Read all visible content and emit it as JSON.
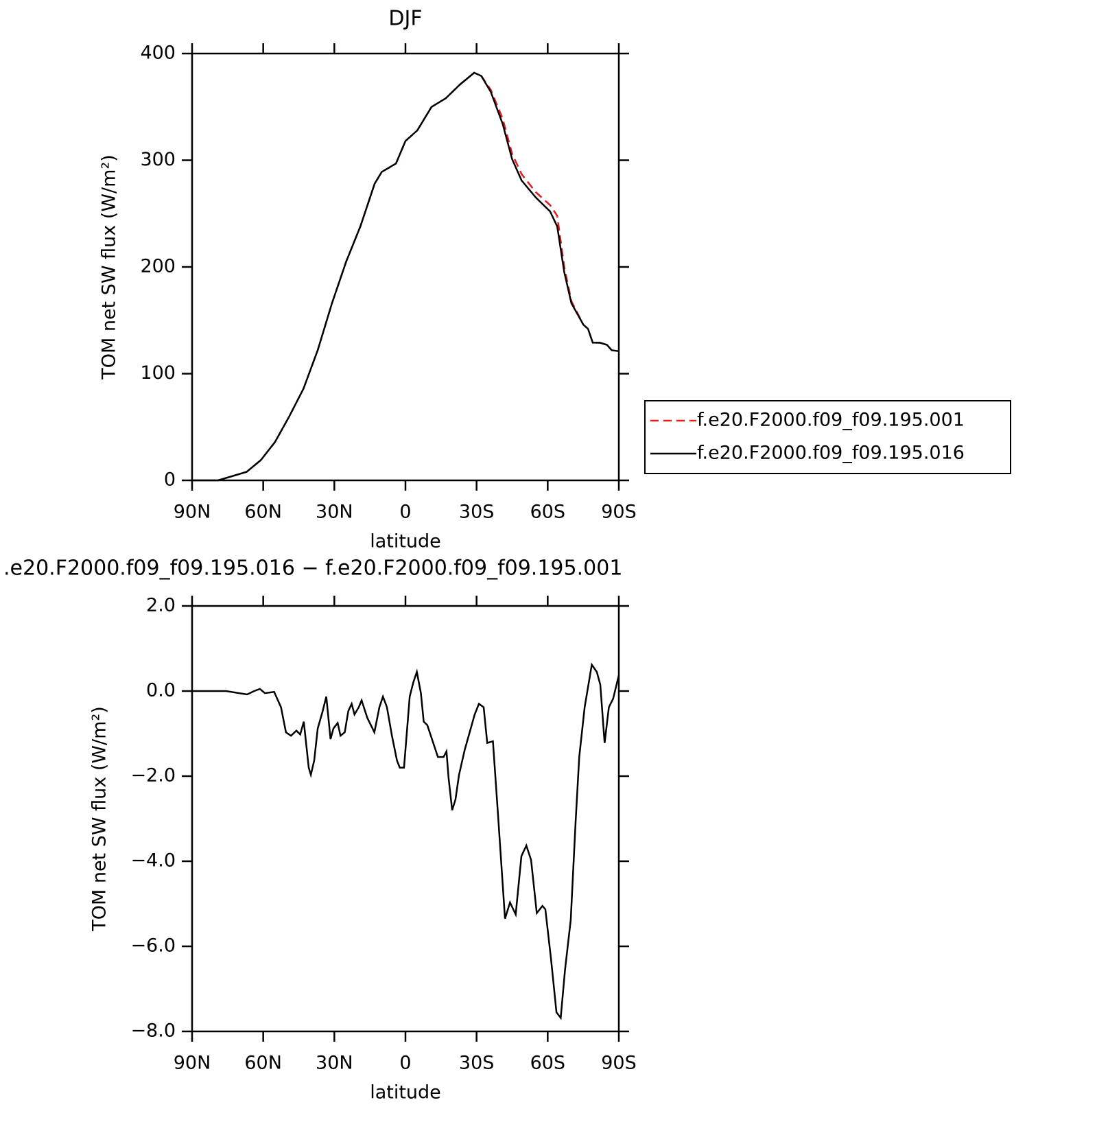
{
  "chart_data": [
    {
      "type": "line",
      "title": "DJF",
      "xlabel": "latitude",
      "ylabel": "TOM net SW flux (W/m²)",
      "x": [
        90,
        79,
        67,
        61,
        55,
        49,
        43,
        37,
        31,
        25,
        19,
        13,
        10,
        7,
        4,
        0,
        -5,
        -11,
        -17,
        -23,
        -29,
        -32,
        -36,
        -41,
        -45,
        -49,
        -55,
        -61,
        -64,
        -67,
        -70,
        -75,
        -77,
        -79,
        -82,
        -85,
        -87,
        -90
      ],
      "series": [
        {
          "name": "f.e20.F2000.f09_f09.195.001",
          "color": "#e41a1c",
          "line_style": "dashed",
          "values": [
            0,
            0,
            8,
            19,
            36,
            60,
            86,
            122,
            166,
            205,
            238,
            278,
            289,
            293,
            297,
            318,
            328,
            350,
            358,
            371,
            382,
            379,
            366,
            339,
            306,
            287,
            270,
            258,
            248,
            200,
            168,
            146,
            142,
            129,
            129,
            127,
            122,
            121
          ]
        },
        {
          "name": "f.e20.F2000.f09_f09.195.016",
          "color": "#000000",
          "line_style": "solid",
          "values": [
            0,
            0,
            8,
            19,
            36,
            60,
            86,
            122,
            166,
            205,
            238,
            278,
            289,
            293,
            297,
            318,
            328,
            350,
            358,
            371,
            382,
            379,
            364,
            334,
            301,
            281,
            265,
            252,
            238,
            195,
            166,
            146,
            142,
            129,
            129,
            127,
            122,
            121
          ]
        }
      ],
      "xlim": [
        90,
        -90
      ],
      "xticks": [
        {
          "value": 90,
          "label": "90N"
        },
        {
          "value": 60,
          "label": "60N"
        },
        {
          "value": 30,
          "label": "30N"
        },
        0,
        {
          "value": -30,
          "label": "30S"
        },
        {
          "value": -60,
          "label": "60S"
        },
        {
          "value": -90,
          "label": "90S"
        }
      ],
      "ylim": [
        0,
        400
      ],
      "yticks": [
        0,
        100,
        200,
        300,
        400
      ],
      "legend": "right"
    },
    {
      "type": "line",
      "title": ".e20.F2000.f09_f09.195.016 − f.e20.F2000.f09_f09.195.001",
      "xlabel": "latitude",
      "ylabel": "TOM net SW flux (W/m²)",
      "x": [
        90,
        75.7,
        66.8,
        63.8,
        61.4,
        59.3,
        55.4,
        52.5,
        50.4,
        48.3,
        46,
        44.4,
        42.9,
        40.8,
        39.9,
        38.5,
        37,
        34.9,
        33.4,
        31.6,
        30.4,
        28.6,
        27.4,
        25.6,
        24.1,
        22.7,
        21.5,
        19.7,
        18.5,
        16.1,
        13.1,
        11,
        9.5,
        7.8,
        5.7,
        3.6,
        2.4,
        0.6,
        -1.8,
        -3.3,
        -4.8,
        -6.5,
        -7.7,
        -9.2,
        -10.7,
        -13.7,
        -16.1,
        -17.3,
        -18.2,
        -19.7,
        -21.1,
        -22.6,
        -25,
        -27.1,
        -29.2,
        -31,
        -33,
        -34.5,
        -36.9,
        -39,
        -42,
        -44.1,
        -46.5,
        -48.9,
        -51,
        -53,
        -55.4,
        -57.8,
        -59,
        -61.4,
        -63.7,
        -65.5,
        -67.3,
        -69.7,
        -71.8,
        -73.3,
        -75.6,
        -78.6,
        -80.7,
        -82.2,
        -84,
        -85.8,
        -87.6,
        -90
      ],
      "values": [
        0,
        0,
        -0.08,
        0,
        0.05,
        -0.05,
        -0.02,
        -0.38,
        -0.97,
        -1.05,
        -0.93,
        -1.02,
        -0.72,
        -1.8,
        -1.97,
        -1.63,
        -0.88,
        -0.47,
        -0.13,
        -1.13,
        -0.88,
        -0.75,
        -1.05,
        -0.97,
        -0.47,
        -0.3,
        -0.55,
        -0.38,
        -0.22,
        -0.63,
        -0.97,
        -0.38,
        -0.13,
        -0.38,
        -1.05,
        -1.63,
        -1.8,
        -1.8,
        -0.13,
        0.2,
        0.45,
        -0.05,
        -0.72,
        -0.8,
        -1.05,
        -1.55,
        -1.55,
        -1.42,
        -2.05,
        -2.8,
        -2.55,
        -1.97,
        -1.38,
        -0.97,
        -0.55,
        -0.3,
        -0.38,
        -1.22,
        -1.18,
        -2.88,
        -5.35,
        -4.97,
        -5.25,
        -3.88,
        -3.63,
        -3.97,
        -5.22,
        -5.05,
        -5.13,
        -6.3,
        -7.55,
        -7.68,
        -6.55,
        -5.38,
        -3.05,
        -1.55,
        -0.38,
        0.62,
        0.45,
        0.15,
        -1.22,
        -0.38,
        -0.18,
        0.37
      ],
      "color": "#000000",
      "xlim": [
        90,
        -90
      ],
      "xticks": [
        {
          "value": 90,
          "label": "90N"
        },
        {
          "value": 60,
          "label": "60N"
        },
        {
          "value": 30,
          "label": "30N"
        },
        0,
        {
          "value": -30,
          "label": "30S"
        },
        {
          "value": -60,
          "label": "60S"
        },
        {
          "value": -90,
          "label": "90S"
        }
      ],
      "ylim": [
        -8,
        2
      ],
      "yticks": [
        {
          "value": -8,
          "label": "−8.0"
        },
        {
          "value": -6,
          "label": "−6.0"
        },
        {
          "value": -4,
          "label": "−4.0"
        },
        {
          "value": -2,
          "label": "−2.0"
        },
        {
          "value": 0,
          "label": "0.0"
        },
        {
          "value": 2,
          "label": "2.0"
        }
      ]
    }
  ]
}
